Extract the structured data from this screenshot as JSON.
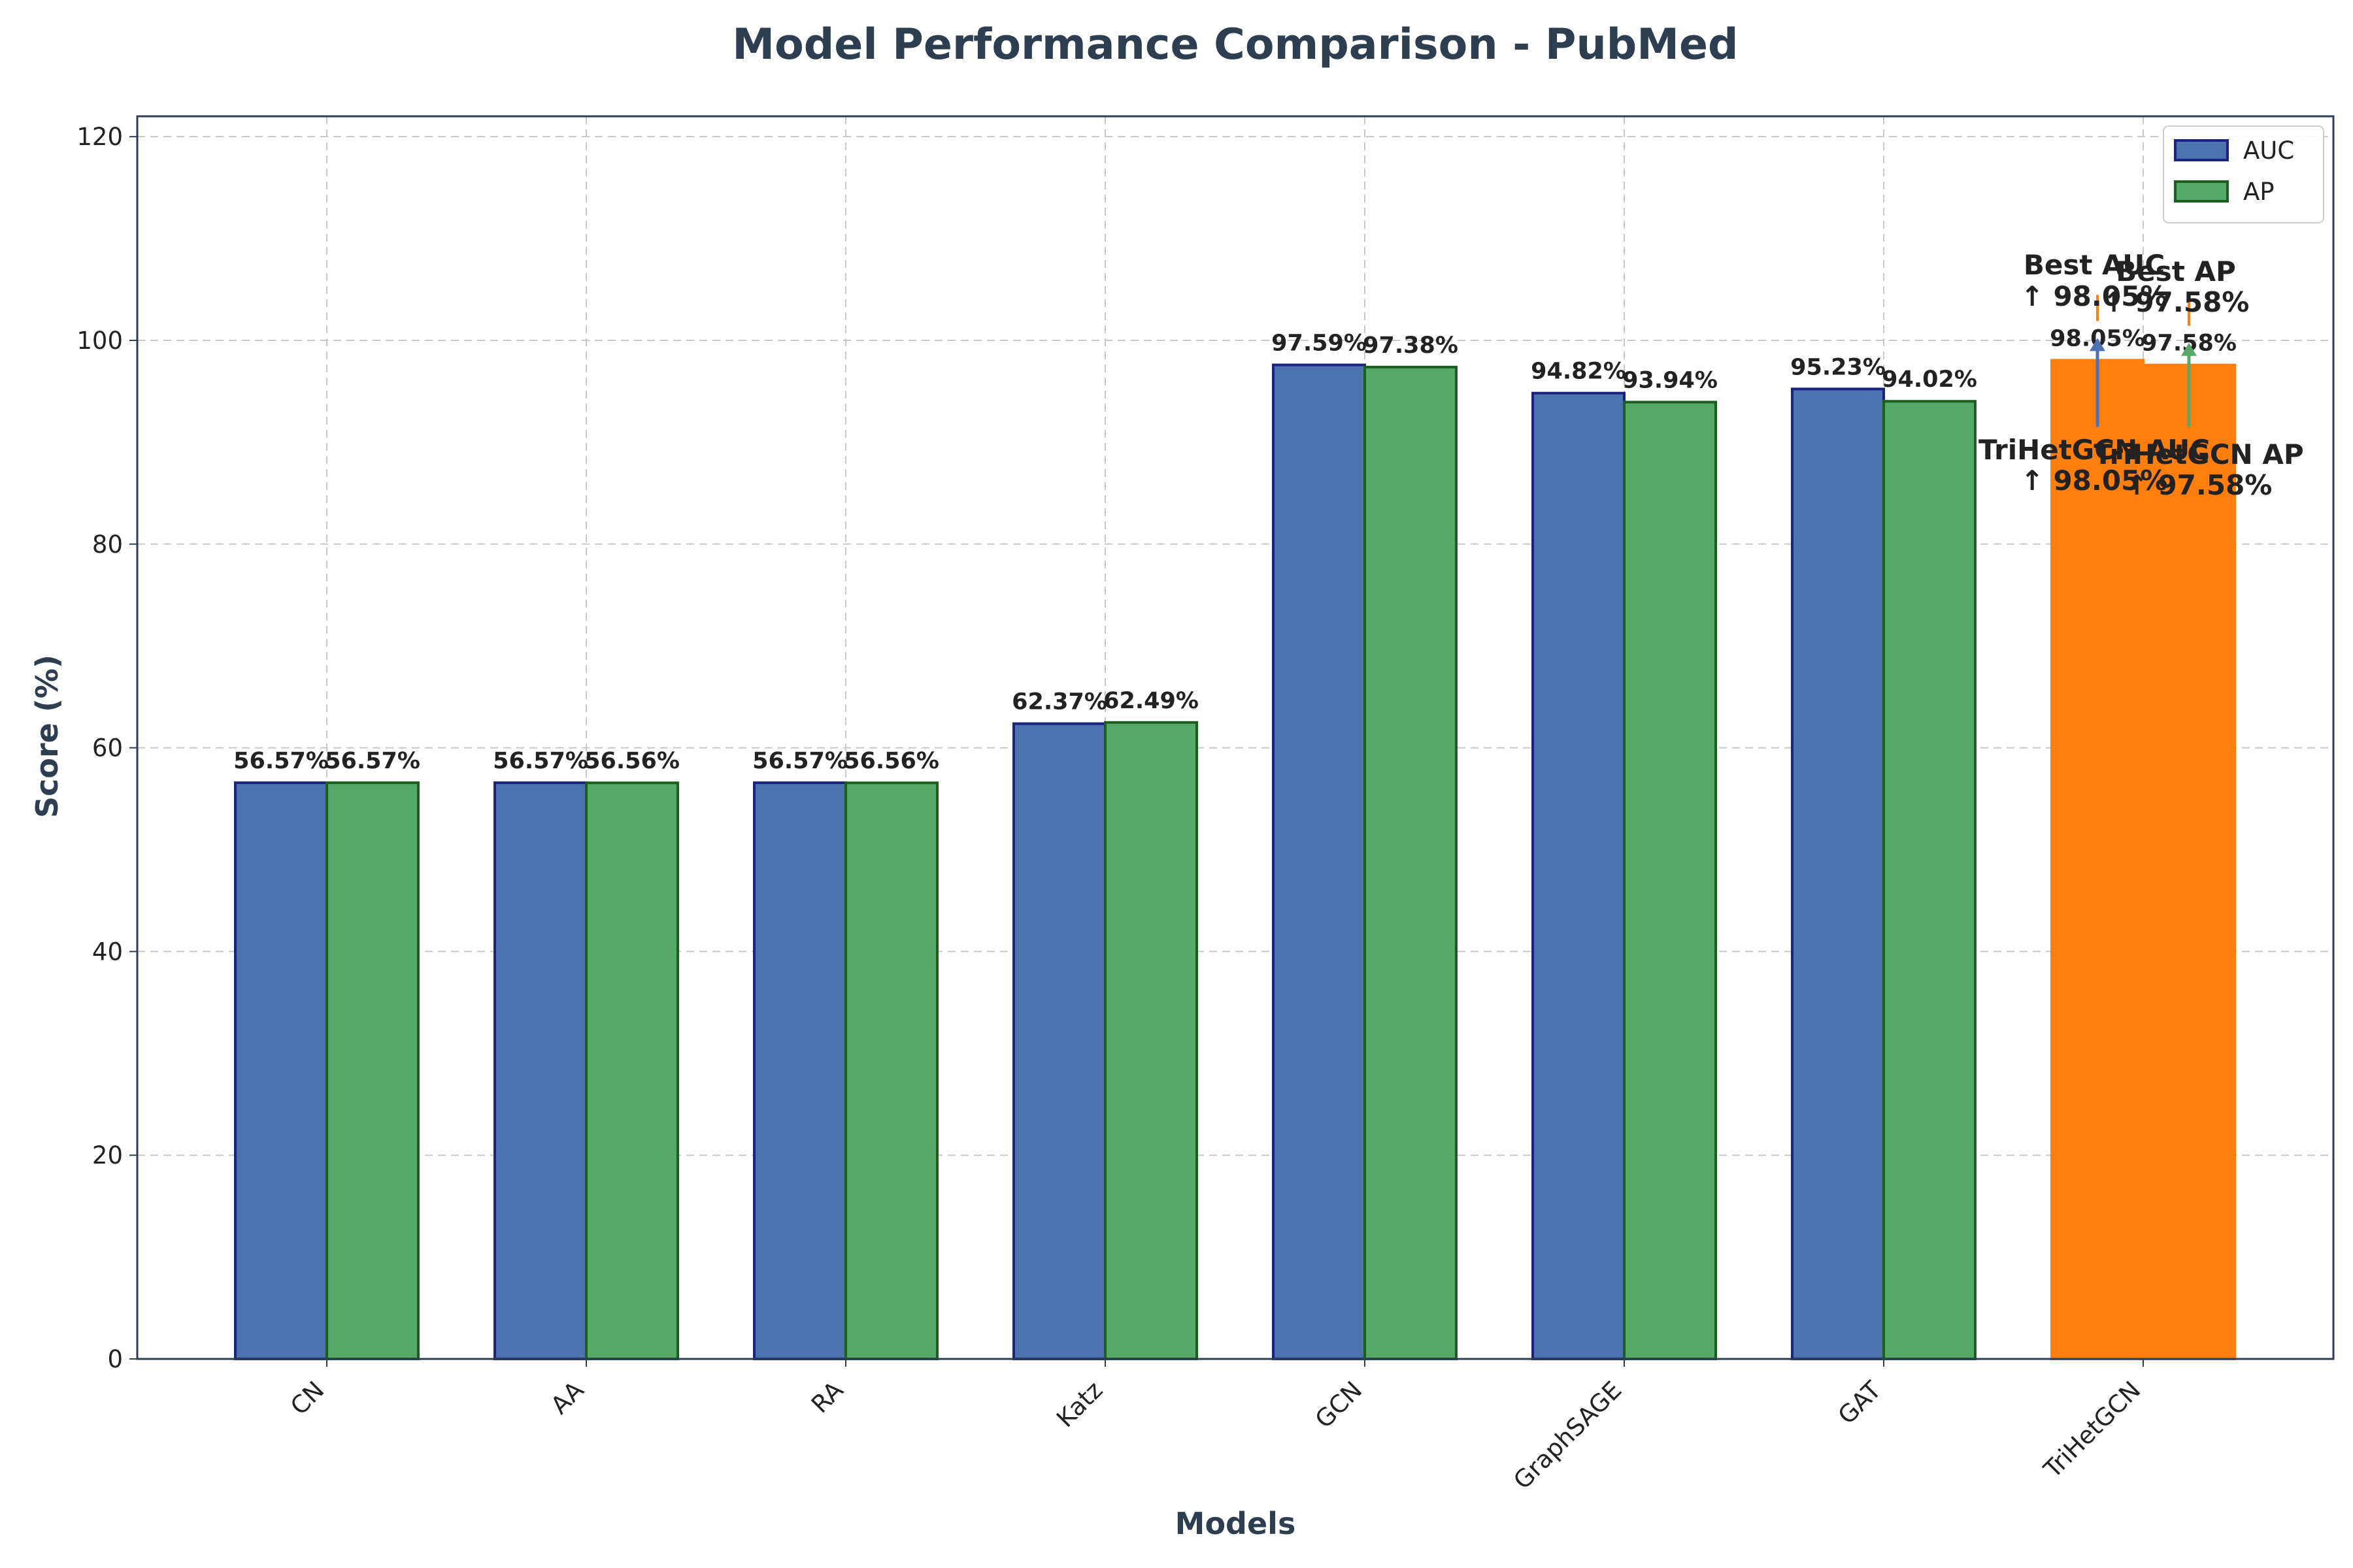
{
  "chart_data": {
    "type": "bar",
    "title": "Model Performance Comparison - PubMed",
    "xlabel": "Models",
    "ylabel": "Score (%)",
    "ylim": [
      0,
      122
    ],
    "yticks": [
      "0",
      "20",
      "40",
      "60",
      "80",
      "100",
      "120"
    ],
    "grid": true,
    "legend_position": "top-right",
    "categories": [
      "CN",
      "AA",
      "RA",
      "Katz",
      "GCN",
      "GraphSAGE",
      "GAT",
      "TriHetGCN"
    ],
    "series": [
      {
        "name": "AUC",
        "values": [
          56.57,
          56.57,
          56.57,
          62.37,
          97.59,
          94.82,
          95.23,
          98.05
        ],
        "labels": [
          "56.57%",
          "56.57%",
          "56.57%",
          "62.37%",
          "97.59%",
          "94.82%",
          "95.23%",
          "98.05%"
        ],
        "color": "#4c72b0",
        "edge_color": "#1a237e"
      },
      {
        "name": "AP",
        "values": [
          56.57,
          56.56,
          56.56,
          62.49,
          97.38,
          93.94,
          94.02,
          97.58
        ],
        "labels": [
          "56.57%",
          "56.56%",
          "56.56%",
          "62.49%",
          "97.38%",
          "93.94%",
          "94.02%",
          "97.58%"
        ],
        "color": "#55a868",
        "edge_color": "#1b5e20"
      }
    ],
    "highlight": {
      "category": "TriHetGCN",
      "color": "#ff7f0e"
    },
    "annotations": {
      "best_auc": {
        "line1": "Best AUC",
        "line2": "↑ 98.05%",
        "value": 98.05
      },
      "best_ap": {
        "line1": "Best AP",
        "line2": "↑ 97.58%",
        "value": 97.58
      },
      "trihet_auc": {
        "line1": "TriHetGCN AUC",
        "line2": "↑ 98.05%",
        "value": 98.05
      },
      "trihet_ap": {
        "line1": "TriHetGCN AP",
        "line2": "↑ 97.58%",
        "value": 97.58
      }
    }
  }
}
